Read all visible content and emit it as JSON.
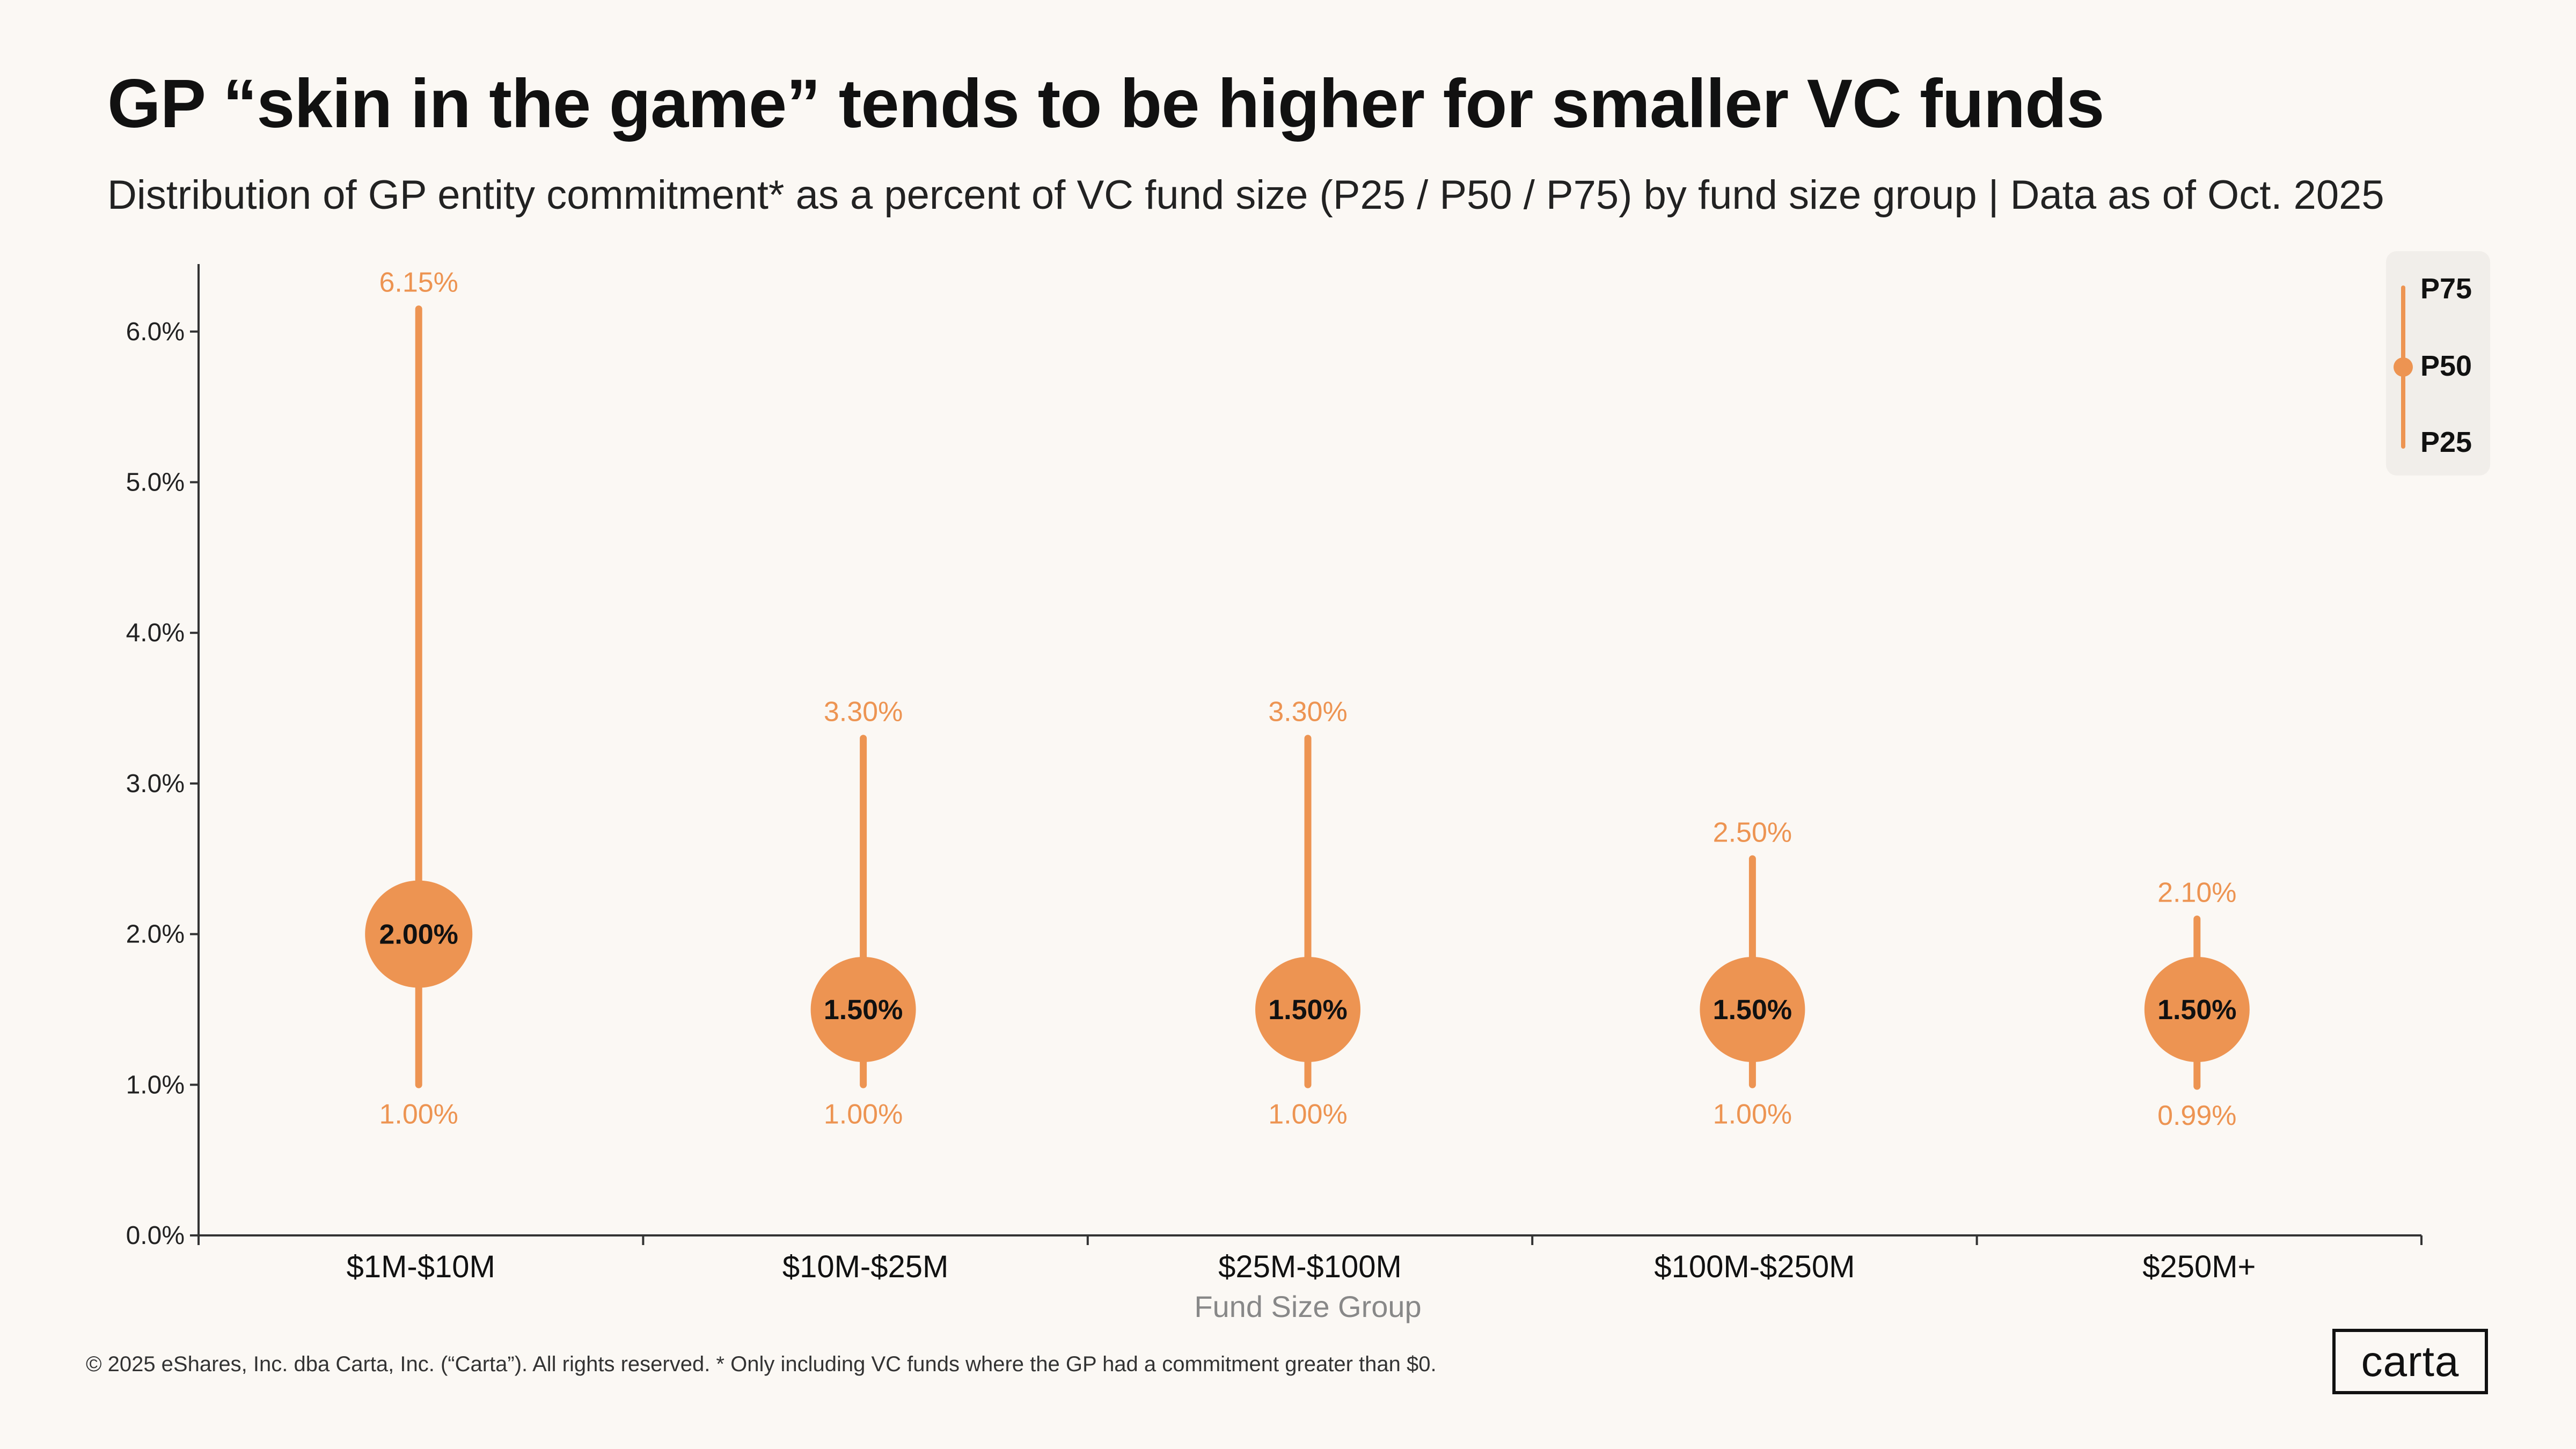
{
  "title": "GP “skin in the game” tends to be higher for smaller VC funds",
  "subtitle": "Distribution of GP entity commitment* as a percent of VC fund size (P25 / P50 / P75) by fund size group | Data as of Oct. 2025",
  "footer": "© 2025 eShares, Inc. dba Carta, Inc. (“Carta”). All rights reserved.  * Only including VC funds where the GP had a commitment greater than $0.",
  "logo_text": "carta",
  "colors": {
    "accent": "#ed9452",
    "background": "#fbf8f4",
    "legend_bg": "#f1eeea"
  },
  "chart_data": {
    "type": "range-dot",
    "xlabel": "Fund Size Group",
    "ylabel": "",
    "ylim": [
      0,
      6.5
    ],
    "yticks": [
      0,
      1,
      2,
      3,
      4,
      5,
      6
    ],
    "ytick_labels": [
      "0.0%",
      "1.0%",
      "2.0%",
      "3.0%",
      "4.0%",
      "5.0%",
      "6.0%"
    ],
    "categories": [
      "$1M-$10M",
      "$10M-$25M",
      "$25M-$100M",
      "$100M-$250M",
      "$250M+"
    ],
    "series": [
      {
        "name": "P75",
        "values": [
          6.15,
          3.3,
          3.3,
          2.5,
          2.1
        ],
        "labels": [
          "6.15%",
          "3.30%",
          "3.30%",
          "2.50%",
          "2.10%"
        ]
      },
      {
        "name": "P50",
        "values": [
          2.0,
          1.5,
          1.5,
          1.5,
          1.5
        ],
        "labels": [
          "2.00%",
          "1.50%",
          "1.50%",
          "1.50%",
          "1.50%"
        ]
      },
      {
        "name": "P25",
        "values": [
          1.0,
          1.0,
          1.0,
          1.0,
          0.99
        ],
        "labels": [
          "1.00%",
          "1.00%",
          "1.00%",
          "1.00%",
          "0.99%"
        ]
      }
    ],
    "legend": {
      "position": "top-right",
      "items": [
        "P75",
        "P50",
        "P25"
      ]
    },
    "grid": false
  }
}
